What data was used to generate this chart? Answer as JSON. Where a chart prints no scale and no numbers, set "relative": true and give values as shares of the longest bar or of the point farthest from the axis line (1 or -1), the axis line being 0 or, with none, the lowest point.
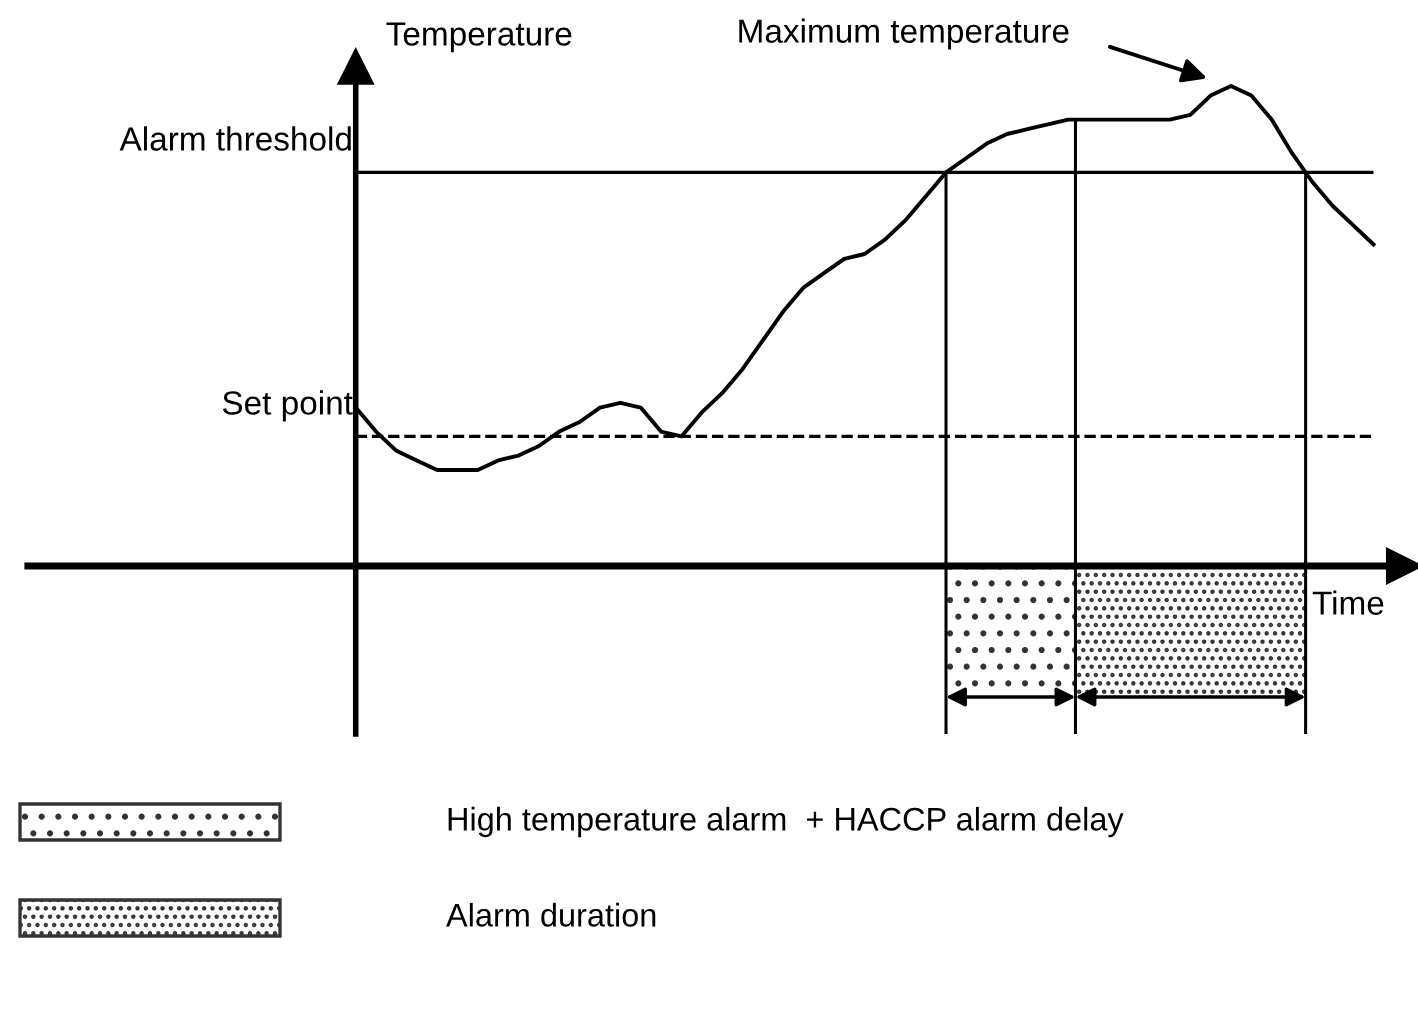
{
  "chart_data": {
    "type": "line",
    "relative": true,
    "xlabel": "Time",
    "ylabel": "Temperature",
    "categories": [
      null,
      null,
      null,
      null,
      null,
      null,
      null,
      null,
      null,
      null,
      null,
      null,
      null,
      null,
      null,
      null,
      null,
      null,
      null,
      null,
      null,
      null,
      null,
      null,
      null,
      null,
      null,
      null,
      null,
      null,
      null,
      null,
      null,
      null,
      null,
      null,
      null,
      null,
      null,
      null,
      null,
      null,
      null,
      null,
      null,
      null,
      null,
      null,
      null,
      null,
      null
    ],
    "series": [
      {
        "color": "#000000",
        "values": [
          0.33,
          0.28,
          0.24,
          0.22,
          0.2,
          0.2,
          0.2,
          0.22,
          0.23,
          0.25,
          0.28,
          0.3,
          0.33,
          0.34,
          0.33,
          0.28,
          0.27,
          0.32,
          0.36,
          0.41,
          0.47,
          0.53,
          0.58,
          0.61,
          0.64,
          0.65,
          0.68,
          0.72,
          0.77,
          0.82,
          0.85,
          0.88,
          0.9,
          0.91,
          0.92,
          0.93,
          0.93,
          0.93,
          0.93,
          0.93,
          0.93,
          0.94,
          0.98,
          1,
          0.98,
          0.93,
          0.86,
          0.8,
          0.75,
          0.71,
          0.67
        ]
      }
    ],
    "ref_lines": [
      {
        "axis": "y",
        "value": 0.82,
        "label": "Alarm threshold",
        "color": "#000000",
        "line_style": "solid"
      },
      {
        "axis": "y",
        "value": 0.27,
        "label": "Set point",
        "color": "#000000",
        "line_style": "dashed"
      }
    ],
    "annotations": [
      "Maximum temperature",
      "High temperature alarm  + HACCP alarm delay",
      "Alarm duration"
    ]
  }
}
